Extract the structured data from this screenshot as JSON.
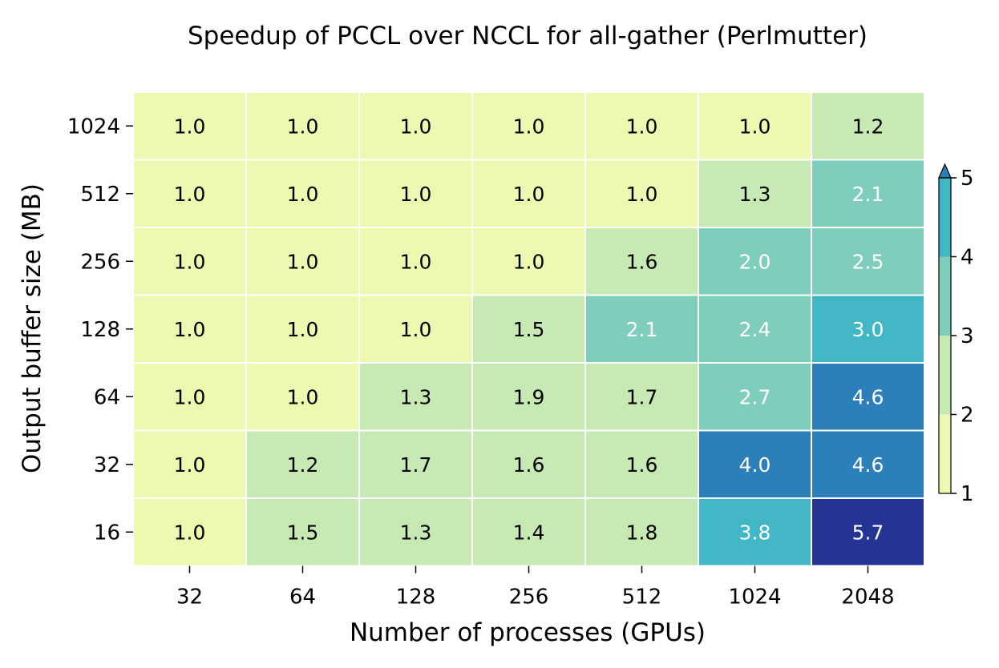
{
  "chart_data": {
    "type": "heatmap",
    "title": "Speedup of PCCL over NCCL for all-gather (Perlmutter)",
    "xlabel": "Number of processes (GPUs)",
    "ylabel": "Output buffer size (MB)",
    "x_categories": [
      "32",
      "64",
      "128",
      "256",
      "512",
      "1024",
      "2048"
    ],
    "y_categories": [
      "1024",
      "512",
      "256",
      "128",
      "64",
      "32",
      "16"
    ],
    "values": [
      [
        1.0,
        1.0,
        1.0,
        1.0,
        1.0,
        1.0,
        1.2
      ],
      [
        1.0,
        1.0,
        1.0,
        1.0,
        1.0,
        1.3,
        2.1
      ],
      [
        1.0,
        1.0,
        1.0,
        1.0,
        1.6,
        2.0,
        2.5
      ],
      [
        1.0,
        1.0,
        1.0,
        1.5,
        2.1,
        2.4,
        3.0
      ],
      [
        1.0,
        1.0,
        1.3,
        1.9,
        1.7,
        2.7,
        4.6
      ],
      [
        1.0,
        1.2,
        1.7,
        1.6,
        1.6,
        4.0,
        4.6
      ],
      [
        1.0,
        1.5,
        1.3,
        1.4,
        1.8,
        3.8,
        5.7
      ]
    ],
    "colorbar": {
      "ticks": [
        "1",
        "2",
        "3",
        "4",
        "5"
      ],
      "range": [
        1,
        5
      ],
      "extend": "max",
      "bins": [
        {
          "from": 1,
          "to": 2,
          "color": "#edf8b1"
        },
        {
          "from": 2,
          "to": 3,
          "color": "#c7e9b4"
        },
        {
          "from": 3,
          "to": 4,
          "color": "#7fcdbb"
        },
        {
          "from": 4,
          "to": 5,
          "color": "#41b6c4"
        },
        {
          "from": 5,
          "to": null,
          "color": "#2c7fb8"
        }
      ],
      "over_color": "#253494"
    },
    "cell_colors": {
      "below_1_1": "#edf8b1",
      "from_1_1_to_2": "#c7e9b4",
      "from_2_to_3": "#7fcdbb",
      "from_3_to_4": "#41b6c4",
      "from_4_to_5": "#2c7fb8",
      "above_5": "#253494"
    },
    "text_colors": {
      "dark": "#000000",
      "light": "#ffffff"
    }
  }
}
